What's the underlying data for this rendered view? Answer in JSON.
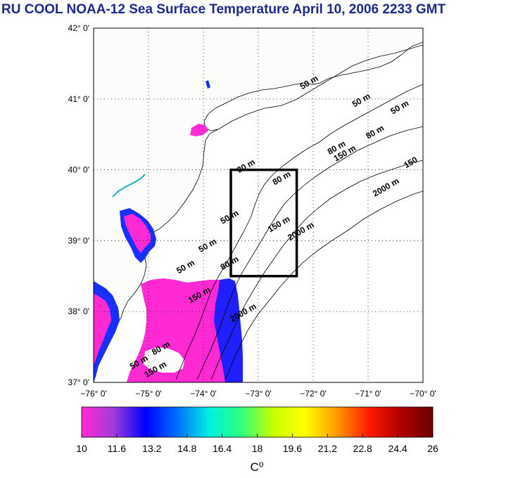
{
  "title": "RU COOL  NOAA-12 Sea Surface Temperature April 10, 2006 2233 GMT",
  "map": {
    "lon_range": [
      -76,
      -70
    ],
    "lat_range": [
      37,
      42
    ],
    "lon_ticks": [
      "−76° 0'",
      "−75° 0'",
      "−74° 0'",
      "−73° 0'",
      "−72° 0'",
      "−71° 0'",
      "−70° 0'"
    ],
    "lat_ticks": [
      "37° 0'",
      "38° 0'",
      "39° 0'",
      "40° 0'",
      "41° 0'",
      "42° 0'"
    ],
    "grid": "dotted",
    "box_region": {
      "lon": [
        -73.5,
        -72.3
      ],
      "lat": [
        38.5,
        40.0
      ]
    },
    "contour_labels": [
      {
        "text": "50 m",
        "lon": -71.1,
        "lat": 40.95
      },
      {
        "text": "50 m",
        "lon": -72.05,
        "lat": 41.2
      },
      {
        "text": "50 m",
        "lon": -70.4,
        "lat": 40.85
      },
      {
        "text": "80 m",
        "lon": -70.85,
        "lat": 40.5
      },
      {
        "text": "80 m",
        "lon": -71.55,
        "lat": 40.28
      },
      {
        "text": "150 m",
        "lon": -71.4,
        "lat": 40.2
      },
      {
        "text": "150",
        "lon": -70.2,
        "lat": 40.07
      },
      {
        "text": "2000 m",
        "lon": -70.65,
        "lat": 39.72
      },
      {
        "text": "80 m",
        "lon": -73.2,
        "lat": 40.02
      },
      {
        "text": "80 m",
        "lon": -72.55,
        "lat": 39.85
      },
      {
        "text": "150 m",
        "lon": -72.6,
        "lat": 39.2
      },
      {
        "text": "2000 m",
        "lon": -72.2,
        "lat": 39.1
      },
      {
        "text": "50 m",
        "lon": -73.5,
        "lat": 39.3
      },
      {
        "text": "50 m",
        "lon": -73.9,
        "lat": 38.9
      },
      {
        "text": "50 m",
        "lon": -74.3,
        "lat": 38.6
      },
      {
        "text": "80 m",
        "lon": -73.5,
        "lat": 38.65
      },
      {
        "text": "150 m",
        "lon": -74.05,
        "lat": 38.2
      },
      {
        "text": "2000 m",
        "lon": -73.25,
        "lat": 37.95
      },
      {
        "text": "80 m",
        "lon": -74.75,
        "lat": 37.45
      },
      {
        "text": "50 m",
        "lon": -75.15,
        "lat": 37.25
      },
      {
        "text": "150 m",
        "lon": -74.85,
        "lat": 37.15
      }
    ]
  },
  "colorbar": {
    "min": 10,
    "max": 26,
    "tick_labels": [
      "10",
      "11.6",
      "13.2",
      "14.8",
      "16.4",
      "18",
      "19.6",
      "21.2",
      "22.8",
      "24.4",
      "26"
    ],
    "stops": [
      "#ff2ad4",
      "#a13cd9",
      "#0000ff",
      "#0070ff",
      "#00f0e0",
      "#30ff80",
      "#c8ff00",
      "#ffff00",
      "#ff9800",
      "#ff1a00",
      "#b00000",
      "#6a0000"
    ],
    "unit_label": "C⁰"
  },
  "colors": {
    "title": "#1d2a8c",
    "land": "#fcfcfa",
    "water_cool": "#ff2ad4",
    "water_blue": "#2020ff",
    "box": "#000000"
  }
}
